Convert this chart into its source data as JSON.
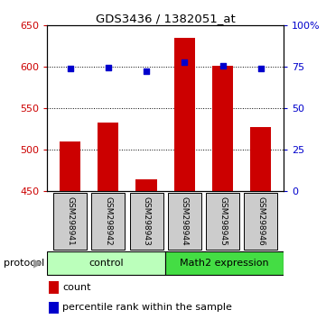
{
  "title": "GDS3436 / 1382051_at",
  "samples": [
    "GSM298941",
    "GSM298942",
    "GSM298943",
    "GSM298944",
    "GSM298945",
    "GSM298946"
  ],
  "bar_values": [
    510,
    533,
    465,
    635,
    601,
    528
  ],
  "scatter_values": [
    74.0,
    74.5,
    72.5,
    78.0,
    75.5,
    74.0
  ],
  "ylim_left": [
    450,
    650
  ],
  "ylim_right": [
    0,
    100
  ],
  "yticks_left": [
    450,
    500,
    550,
    600,
    650
  ],
  "yticks_right": [
    0,
    25,
    50,
    75,
    100
  ],
  "bar_color": "#cc0000",
  "scatter_color": "#0000cc",
  "scatter_size": 18,
  "bar_width": 0.55,
  "ctrl_color": "#bbffbb",
  "expr_color": "#44dd44",
  "sample_box_color": "#cccccc",
  "grid_color": "black"
}
